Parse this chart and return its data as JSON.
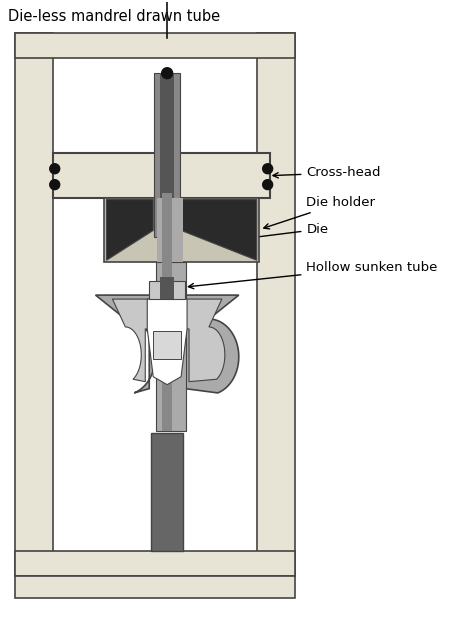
{
  "title": "Die-less mandrel drawn tube",
  "labels": {
    "cross_head": "Cross-head",
    "die_holder": "Die holder",
    "die": "Die",
    "hollow_sunken_tube": "Hollow sunken tube"
  },
  "colors": {
    "bg": "#ffffff",
    "frame_fill": "#e8e4d5",
    "frame_edge": "#444444",
    "crosshead_fill": "#e8e4d5",
    "die_holder_fill": "#c8c5b5",
    "die_fill": "#2a2a2a",
    "tube_light": "#aaaaaa",
    "tube_mid": "#888888",
    "tube_dark": "#555555",
    "clamp_outer": "#aaaaaa",
    "clamp_mid": "#c8c8c8",
    "clamp_light": "#d8d8d8",
    "clamp_white": "#ffffff",
    "stem_dark": "#666666",
    "bolt": "#111111",
    "arrow": "#000000",
    "text": "#000000"
  },
  "figsize": [
    4.74,
    6.27
  ],
  "dpi": 100
}
